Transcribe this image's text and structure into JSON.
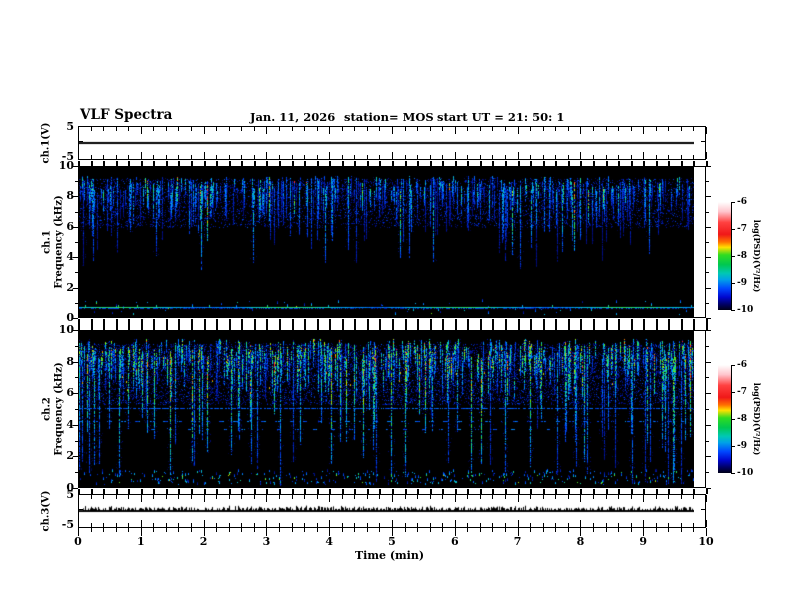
{
  "header": {
    "title": "VLF Spectra",
    "date": "Jan. 11, 2026",
    "station": "station= MOS",
    "start_ut": "start UT =  21: 50: 1"
  },
  "xaxis": {
    "label": "Time (min)",
    "ticks": [
      "0",
      "1",
      "2",
      "3",
      "4",
      "5",
      "6",
      "7",
      "8",
      "9",
      "10"
    ]
  },
  "panels": {
    "ch1v": {
      "label": "ch.1(V)",
      "ytop": "5",
      "ybottom": "-5"
    },
    "spec1": {
      "label_line1": "ch.1",
      "label_line2": "Frequency (kHz)",
      "yticks": [
        "10",
        "8",
        "6",
        "4",
        "2",
        "0"
      ]
    },
    "spec2": {
      "label_line1": "ch.2",
      "label_line2": "Frequency (kHz)",
      "yticks": [
        "10",
        "8",
        "6",
        "4",
        "2",
        "0"
      ]
    },
    "ch3v": {
      "label": "ch.3(V)",
      "ytop": "5",
      "ybottom": "-5"
    }
  },
  "colorbar": {
    "label": "log(PSD)(V²/Hz)",
    "ticks": [
      "-6",
      "-7",
      "-8",
      "-9",
      "-10"
    ],
    "gradient": [
      [
        "#ffffff",
        0
      ],
      [
        "#ffc4cc",
        9
      ],
      [
        "#ff4040",
        19
      ],
      [
        "#f01818",
        30
      ],
      [
        "#ff7000",
        37
      ],
      [
        "#ffe000",
        42
      ],
      [
        "#30dc20",
        49
      ],
      [
        "#00c850",
        58
      ],
      [
        "#00c8b4",
        66
      ],
      [
        "#00a0e8",
        72
      ],
      [
        "#0048ff",
        80
      ],
      [
        "#0008d0",
        88
      ],
      [
        "#000060",
        95
      ],
      [
        "#000018",
        100
      ]
    ]
  },
  "chart_data": [
    {
      "type": "line",
      "name": "ch1-voltage",
      "ylabel": "ch.1(V)",
      "ylim": [
        -5,
        5
      ],
      "xlim": [
        0,
        10
      ],
      "data_end_min": 9.8,
      "description": "flat zero-volt trace",
      "spikes": 0,
      "seed": 11
    },
    {
      "type": "heatmap",
      "name": "ch1-spectrogram",
      "ylabel": "ch.1 Frequency (kHz)",
      "ylim": [
        0,
        10
      ],
      "xlim": [
        0,
        10
      ],
      "data_end_min": 9.8,
      "zlabel": "log(PSD)(V²/Hz)",
      "zlim": [
        -10,
        -6
      ],
      "description": "sferic vertical streaks 6-9.5 kHz, blue/cyan, horizontal tone line at 0.65 kHz",
      "seed": 42,
      "streaks": 430,
      "t0": 8.4,
      "t1": 9.4,
      "maxLen": 3.6,
      "longProb": 0.07,
      "longLen": 5.6,
      "i0": 0.22,
      "i1": 0.62,
      "greenProb": 0.05,
      "fuzz": 0.55,
      "cloud": 5200,
      "cloudBand": [
        6.0,
        9.25
      ],
      "hot": 0,
      "bottomDots": 70,
      "hlines": [
        {
          "f": 0.65,
          "style": "solid-cyan"
        }
      ]
    },
    {
      "type": "heatmap",
      "name": "ch2-spectrogram",
      "ylabel": "ch.2 Frequency (kHz)",
      "ylim": [
        0,
        10
      ],
      "xlim": [
        0,
        10
      ],
      "data_end_min": 9.8,
      "zlabel": "log(PSD)(V²/Hz)",
      "zlim": [
        -10,
        -6
      ],
      "description": "dense sferic streaks 5-9.5 kHz, green cores, faint lines near 5.0/4.25/3.75 kHz, scattered dots below 1 kHz",
      "seed": 7,
      "streaks": 540,
      "t0": 8.2,
      "t1": 9.5,
      "maxLen": 3.4,
      "longProb": 0.17,
      "longLen": 8.4,
      "i0": 0.32,
      "i1": 0.85,
      "greenProb": 0.2,
      "fuzz": 0.8,
      "cloud": 9200,
      "cloudBand": [
        5.3,
        9.2
      ],
      "hot": 24,
      "bottomDots": 420,
      "hlines": [
        {
          "f": 5.05,
          "style": "faint"
        },
        {
          "f": 4.25,
          "style": "dashed"
        },
        {
          "f": 3.75,
          "style": "dashed-partial"
        }
      ]
    },
    {
      "type": "line",
      "name": "ch3-voltage",
      "ylabel": "ch.3(V)",
      "ylim": [
        -5,
        5
      ],
      "xlim": [
        0,
        10
      ],
      "data_end_min": 9.8,
      "description": "zero-volt trace with small noise spikes",
      "spikes": 520,
      "seed": 99
    }
  ]
}
